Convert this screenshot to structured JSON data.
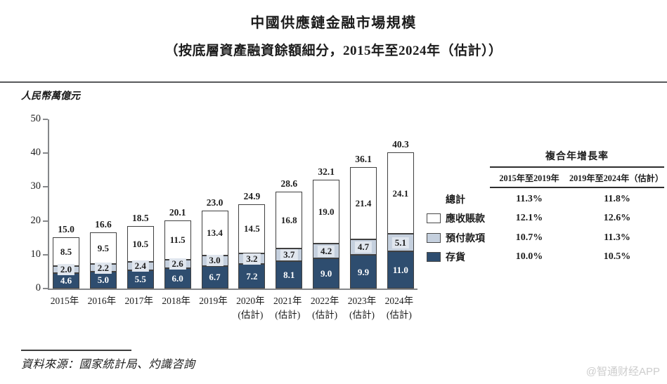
{
  "source_note": "資料來源：國家統計局、灼識咨詢",
  "watermark": "@智通财经APP",
  "colors": {
    "inventory": "#2e4d6f",
    "prepayments": "#c5d0de",
    "receivables": "#ffffff",
    "segment_border": "#404040",
    "axis": "#85878a",
    "accent_dark_blue": "#2e4d6f"
  },
  "chart_data": {
    "type": "bar",
    "stacked": true,
    "title": "中國供應鏈金融市場規模",
    "subtitle": "（按底層資產融資餘額細分，2015年至2024年（估計））",
    "ylabel": "人民幣萬億元",
    "xlabel": "",
    "ylim": [
      0,
      50
    ],
    "yticks": [
      0,
      10,
      20,
      30,
      40,
      50
    ],
    "grid": false,
    "legend_position": "right",
    "categories": [
      {
        "label": "2015年",
        "sublabel": ""
      },
      {
        "label": "2016年",
        "sublabel": ""
      },
      {
        "label": "2017年",
        "sublabel": ""
      },
      {
        "label": "2018年",
        "sublabel": ""
      },
      {
        "label": "2019年",
        "sublabel": ""
      },
      {
        "label": "2020年",
        "sublabel": "(估計)"
      },
      {
        "label": "2021年",
        "sublabel": "(估計)"
      },
      {
        "label": "2022年",
        "sublabel": "(估計)"
      },
      {
        "label": "2023年",
        "sublabel": "(估計)"
      },
      {
        "label": "2024年",
        "sublabel": "(估計)"
      }
    ],
    "series": [
      {
        "name": "存貨",
        "key": "inventory",
        "values": [
          4.6,
          5.0,
          5.5,
          6.0,
          6.7,
          7.2,
          8.1,
          9.0,
          9.9,
          11.0
        ]
      },
      {
        "name": "預付款項",
        "key": "prepayments",
        "values": [
          2.0,
          2.2,
          2.4,
          2.6,
          3.0,
          3.2,
          3.7,
          4.2,
          4.7,
          5.1
        ]
      },
      {
        "name": "應收賬款",
        "key": "receivables",
        "values": [
          8.5,
          9.5,
          10.5,
          11.5,
          13.4,
          14.5,
          16.8,
          19.0,
          21.4,
          24.1
        ]
      }
    ],
    "totals": [
      15.0,
      16.6,
      18.5,
      20.1,
      23.0,
      24.9,
      28.6,
      32.1,
      36.1,
      40.3
    ],
    "legend": [
      {
        "label": "總計",
        "swatch": "none"
      },
      {
        "label": "應收賬款",
        "swatch": "receivables"
      },
      {
        "label": "預付款項",
        "swatch": "prepayments"
      },
      {
        "label": "存貨",
        "swatch": "inventory"
      }
    ]
  },
  "cagr_table": {
    "title": "複合年增長率",
    "columns": [
      "2015年至2019年",
      "2019年至2024年（估計）"
    ],
    "rows": [
      {
        "label": "總計",
        "values": [
          "11.3%",
          "11.8%"
        ]
      },
      {
        "label": "應收賬款",
        "values": [
          "12.1%",
          "12.6%"
        ]
      },
      {
        "label": "預付款項",
        "values": [
          "10.7%",
          "11.3%"
        ]
      },
      {
        "label": "存貨",
        "values": [
          "10.0%",
          "10.5%"
        ]
      }
    ]
  }
}
